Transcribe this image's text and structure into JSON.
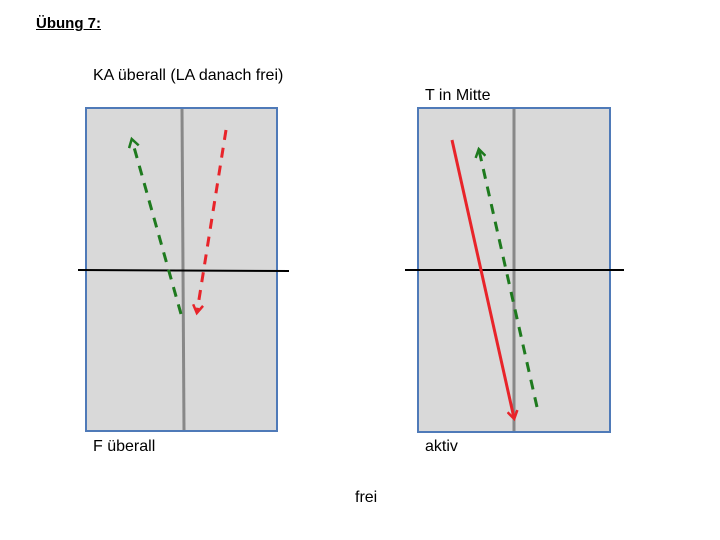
{
  "title": "Übung 7:",
  "left_panel": {
    "top_label": "KA überall (LA danach frei)",
    "bottom_label": "F überall",
    "arrows": [
      {
        "color": "#1e7a1e",
        "style": "dashed",
        "direction": "up"
      },
      {
        "color": "#e8242a",
        "style": "dashed",
        "direction": "down"
      }
    ]
  },
  "right_panel": {
    "top_label": "T in Mitte",
    "bottom_label": "aktiv",
    "arrows": [
      {
        "color": "#e8242a",
        "style": "solid",
        "direction": "down"
      },
      {
        "color": "#1e7a1e",
        "style": "dashed",
        "direction": "up"
      }
    ]
  },
  "footer": "frei",
  "colors": {
    "panel_fill": "#d9d9d9",
    "panel_border": "#4f7ab8",
    "red": "#e8242a",
    "green": "#1e7a1e"
  }
}
